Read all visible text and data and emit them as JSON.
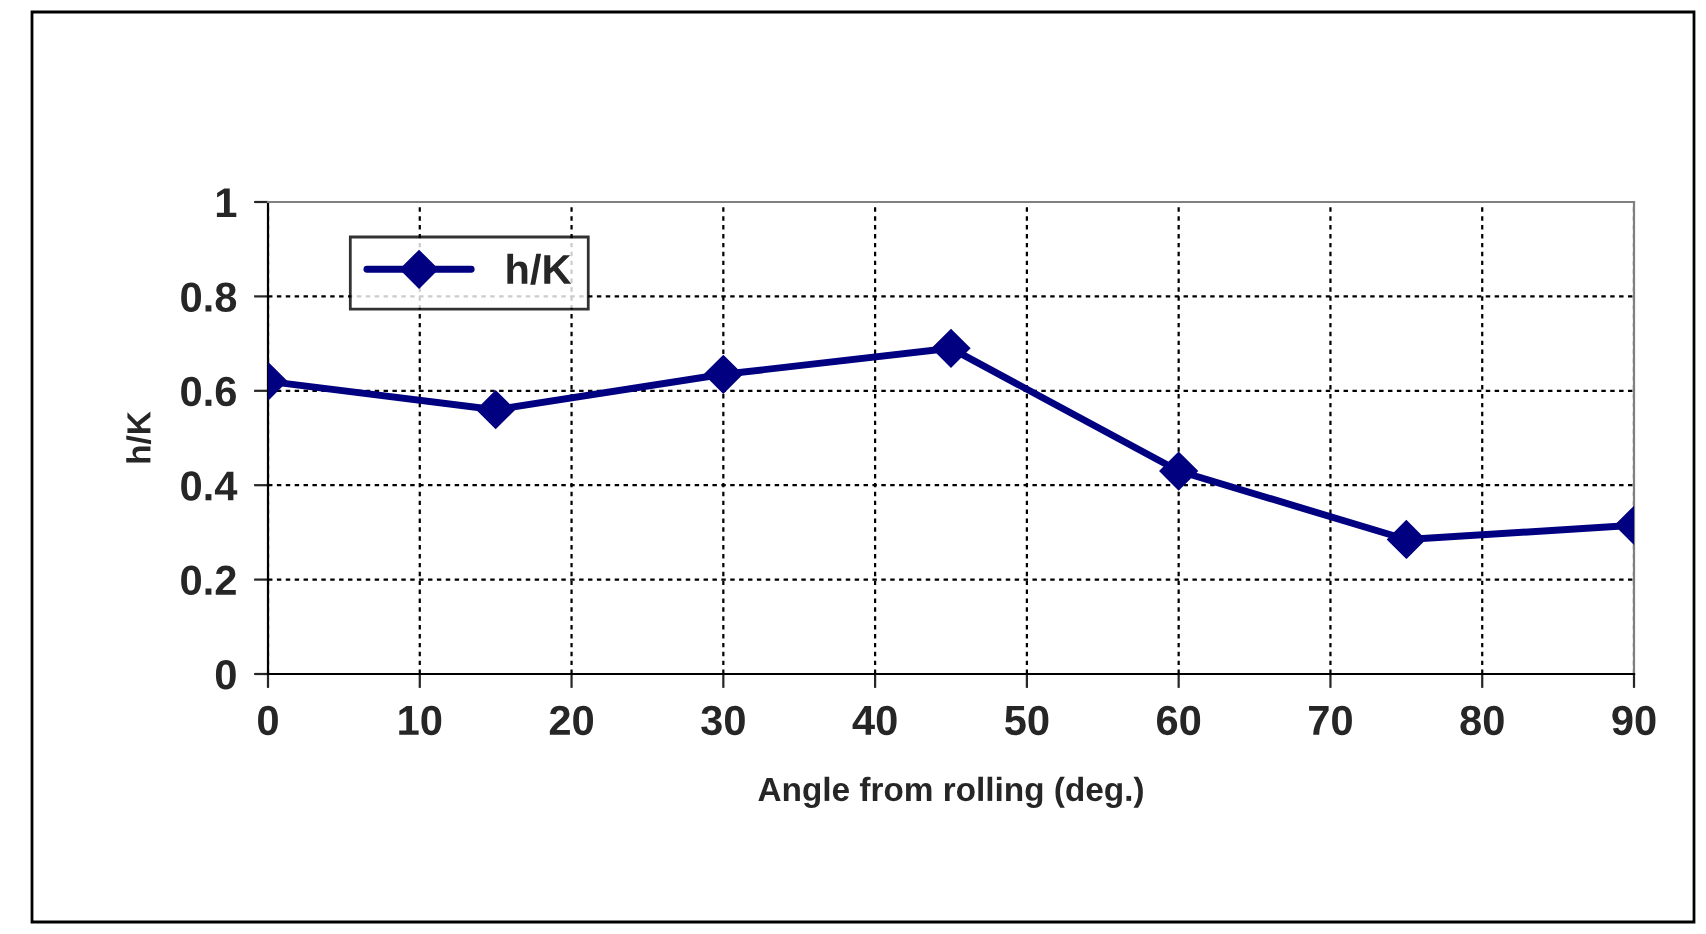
{
  "chart_data": {
    "type": "line",
    "xlabel": "Angle from rolling (deg.)",
    "ylabel": "h/K",
    "x": [
      0,
      15,
      30,
      45,
      60,
      75,
      90
    ],
    "series": [
      {
        "name": "h/K",
        "color": "#000080",
        "values": [
          0.62,
          0.56,
          0.635,
          0.69,
          0.43,
          0.285,
          0.315
        ]
      }
    ],
    "xlim": [
      0,
      90
    ],
    "xticks": [
      0,
      10,
      20,
      30,
      40,
      50,
      60,
      70,
      80,
      90
    ],
    "ylim": [
      0,
      1
    ],
    "yticks": [
      0,
      0.2,
      0.4,
      0.6,
      0.8,
      1
    ],
    "grid": true,
    "legend": "top left",
    "marker": "diamond",
    "line_style": "solid"
  }
}
